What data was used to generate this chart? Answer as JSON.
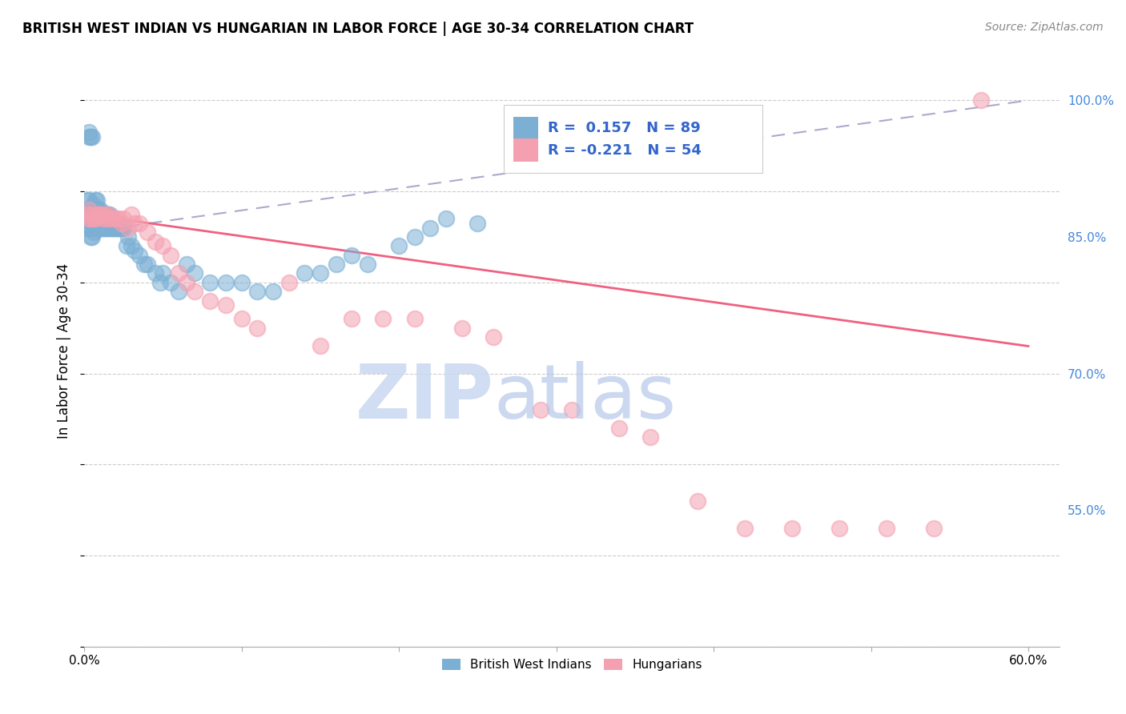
{
  "title": "BRITISH WEST INDIAN VS HUNGARIAN IN LABOR FORCE | AGE 30-34 CORRELATION CHART",
  "source": "Source: ZipAtlas.com",
  "ylabel": "In Labor Force | Age 30-34",
  "xlim": [
    0.0,
    0.62
  ],
  "ylim": [
    0.4,
    1.05
  ],
  "xticks": [
    0.0,
    0.1,
    0.2,
    0.3,
    0.4,
    0.5,
    0.6
  ],
  "xticklabels": [
    "0.0%",
    "",
    "",
    "",
    "",
    "",
    "60.0%"
  ],
  "yticks_right": [
    0.55,
    0.7,
    0.85,
    1.0
  ],
  "ytick_labels_right": [
    "55.0%",
    "70.0%",
    "85.0%",
    "100.0%"
  ],
  "legend_line1": "R =  0.157   N = 89",
  "legend_line2": "R = -0.221   N = 54",
  "legend_label1": "British West Indians",
  "legend_label2": "Hungarians",
  "blue_color": "#7BAFD4",
  "pink_color": "#F4A0B0",
  "blue_line_color": "#AAAACC",
  "pink_line_color": "#F06080",
  "legend_text_color": "#3366CC",
  "watermark_zip_color": "#C8D8F0",
  "watermark_atlas_color": "#B0C4E8",
  "blue_x": [
    0.001,
    0.001,
    0.002,
    0.002,
    0.002,
    0.003,
    0.003,
    0.003,
    0.003,
    0.003,
    0.004,
    0.004,
    0.004,
    0.004,
    0.005,
    0.005,
    0.005,
    0.005,
    0.005,
    0.006,
    0.006,
    0.006,
    0.006,
    0.007,
    0.007,
    0.007,
    0.007,
    0.008,
    0.008,
    0.008,
    0.008,
    0.009,
    0.009,
    0.009,
    0.01,
    0.01,
    0.01,
    0.01,
    0.011,
    0.011,
    0.011,
    0.012,
    0.012,
    0.013,
    0.013,
    0.014,
    0.014,
    0.015,
    0.015,
    0.016,
    0.016,
    0.017,
    0.018,
    0.019,
    0.02,
    0.021,
    0.022,
    0.023,
    0.024,
    0.025,
    0.027,
    0.028,
    0.03,
    0.032,
    0.035,
    0.038,
    0.04,
    0.045,
    0.048,
    0.05,
    0.055,
    0.06,
    0.065,
    0.07,
    0.08,
    0.09,
    0.1,
    0.11,
    0.12,
    0.14,
    0.15,
    0.16,
    0.17,
    0.18,
    0.2,
    0.21,
    0.22,
    0.23,
    0.25
  ],
  "blue_y": [
    0.87,
    0.88,
    0.86,
    0.875,
    0.89,
    0.87,
    0.88,
    0.89,
    0.96,
    0.965,
    0.85,
    0.86,
    0.87,
    0.96,
    0.85,
    0.86,
    0.87,
    0.88,
    0.96,
    0.855,
    0.865,
    0.875,
    0.885,
    0.86,
    0.87,
    0.88,
    0.89,
    0.86,
    0.87,
    0.88,
    0.89,
    0.86,
    0.87,
    0.88,
    0.86,
    0.87,
    0.875,
    0.88,
    0.86,
    0.87,
    0.875,
    0.86,
    0.875,
    0.86,
    0.875,
    0.86,
    0.875,
    0.86,
    0.875,
    0.86,
    0.875,
    0.86,
    0.86,
    0.86,
    0.86,
    0.86,
    0.86,
    0.86,
    0.86,
    0.86,
    0.84,
    0.85,
    0.84,
    0.835,
    0.83,
    0.82,
    0.82,
    0.81,
    0.8,
    0.81,
    0.8,
    0.79,
    0.82,
    0.81,
    0.8,
    0.8,
    0.8,
    0.79,
    0.79,
    0.81,
    0.81,
    0.82,
    0.83,
    0.82,
    0.84,
    0.85,
    0.86,
    0.87,
    0.865
  ],
  "pink_x": [
    0.002,
    0.003,
    0.003,
    0.004,
    0.005,
    0.006,
    0.007,
    0.008,
    0.009,
    0.01,
    0.011,
    0.012,
    0.013,
    0.014,
    0.015,
    0.016,
    0.018,
    0.02,
    0.022,
    0.024,
    0.025,
    0.028,
    0.03,
    0.032,
    0.035,
    0.04,
    0.045,
    0.05,
    0.055,
    0.06,
    0.065,
    0.07,
    0.08,
    0.09,
    0.1,
    0.11,
    0.13,
    0.15,
    0.17,
    0.19,
    0.21,
    0.24,
    0.26,
    0.29,
    0.31,
    0.34,
    0.36,
    0.39,
    0.42,
    0.45,
    0.48,
    0.51,
    0.54,
    0.57
  ],
  "pink_y": [
    0.875,
    0.87,
    0.88,
    0.87,
    0.875,
    0.87,
    0.87,
    0.875,
    0.875,
    0.875,
    0.875,
    0.87,
    0.875,
    0.87,
    0.875,
    0.87,
    0.87,
    0.87,
    0.87,
    0.865,
    0.87,
    0.86,
    0.875,
    0.865,
    0.865,
    0.855,
    0.845,
    0.84,
    0.83,
    0.81,
    0.8,
    0.79,
    0.78,
    0.775,
    0.76,
    0.75,
    0.8,
    0.73,
    0.76,
    0.76,
    0.76,
    0.75,
    0.74,
    0.66,
    0.66,
    0.64,
    0.63,
    0.56,
    0.53,
    0.53,
    0.53,
    0.53,
    0.53,
    1.0
  ],
  "pink_line_x0": 0.0,
  "pink_line_y0": 0.875,
  "pink_line_x1": 0.6,
  "pink_line_y1": 0.73,
  "blue_line_x0": 0.0,
  "blue_line_y0": 0.855,
  "blue_line_x1": 0.6,
  "blue_line_y1": 1.0
}
